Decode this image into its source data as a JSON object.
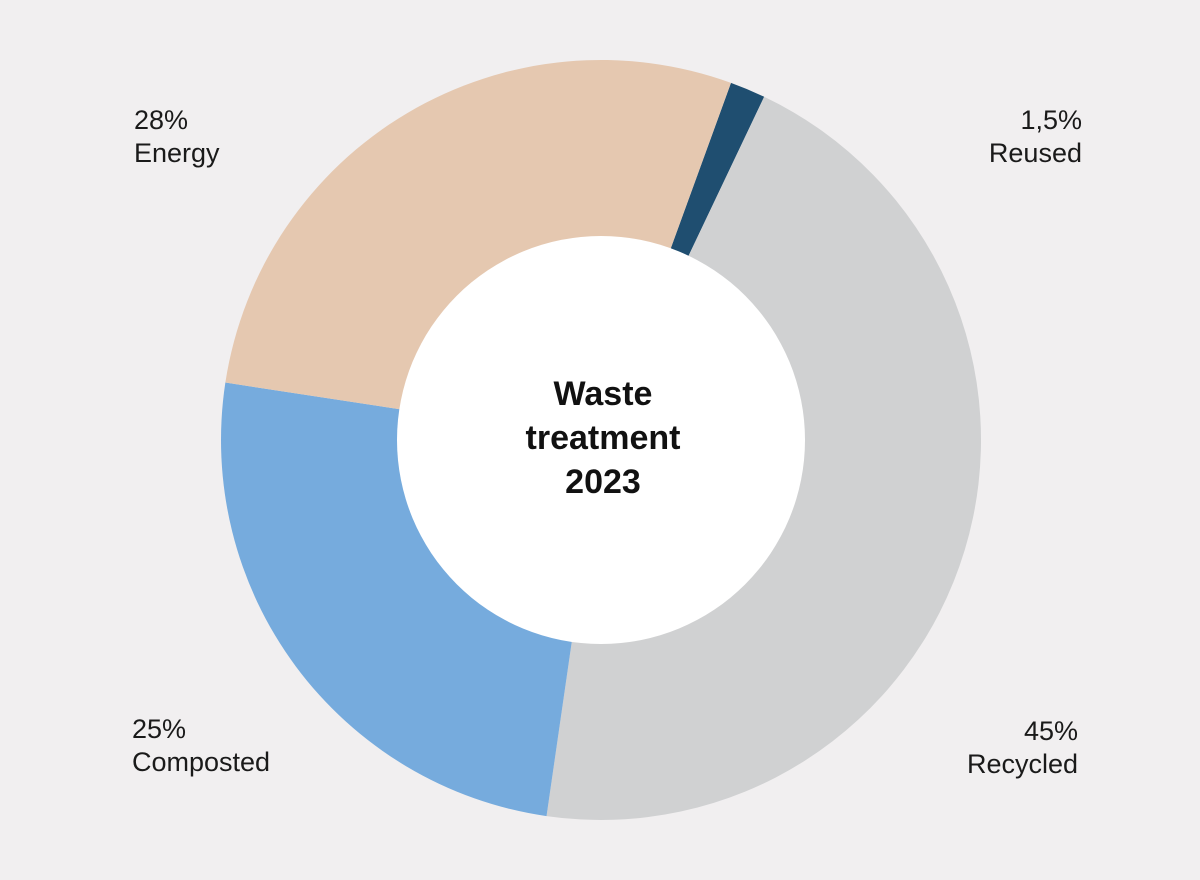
{
  "chart_data": {
    "type": "pie",
    "variant": "donut",
    "title_lines": [
      "Waste",
      "treatment",
      "2023"
    ],
    "segments": [
      {
        "name": "Reused",
        "value": 1.5,
        "label": "1,5%",
        "color": "#1f4e70"
      },
      {
        "name": "Recycled",
        "value": 45,
        "label": "45%",
        "color": "#d0d1d2"
      },
      {
        "name": "Composted",
        "value": 25,
        "label": "25%",
        "color": "#76abdd"
      },
      {
        "name": "Energy",
        "value": 28,
        "label": "28%",
        "color": "#e5c8b0"
      }
    ],
    "center_color": "#ffffff",
    "background_color": "#f1eff0"
  }
}
